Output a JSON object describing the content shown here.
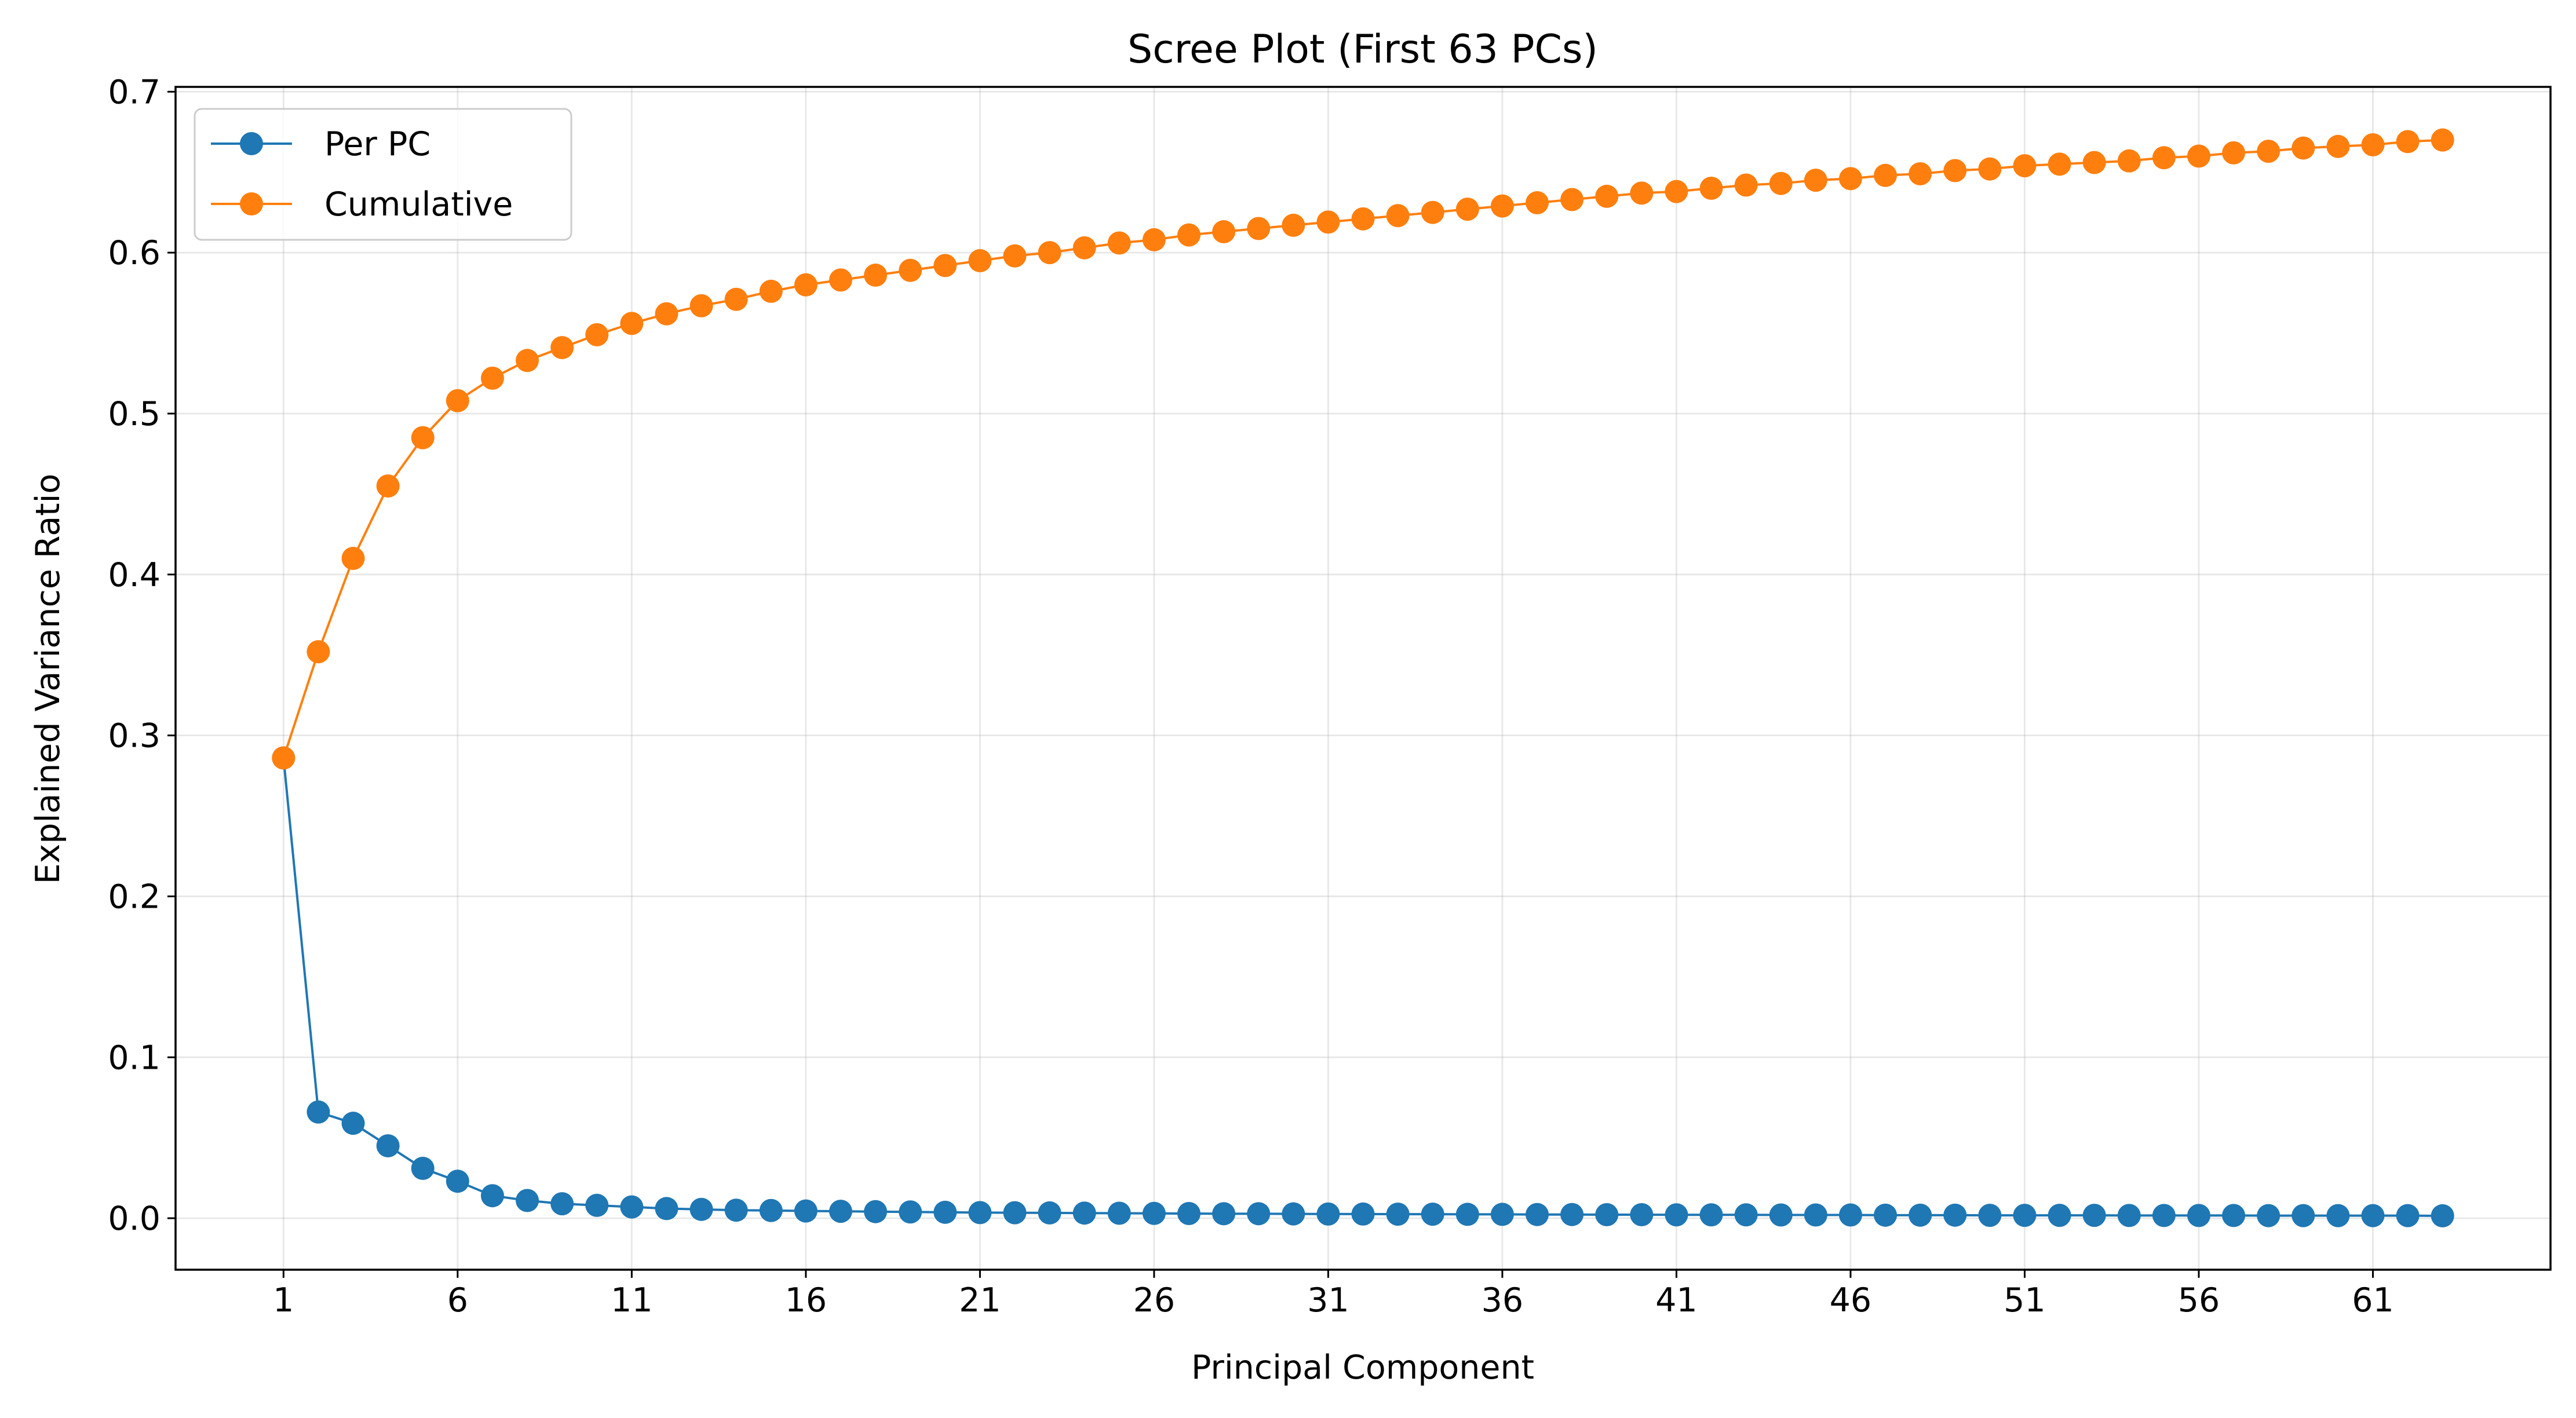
{
  "chart_data": {
    "type": "line",
    "title": "Scree Plot (First 63 PCs)",
    "xlabel": "Principal Component",
    "ylabel": "Explained Variance Ratio",
    "xlim": [
      -2.1,
      66.1
    ],
    "ylim": [
      -0.032,
      0.703
    ],
    "xticks": [
      1,
      6,
      11,
      16,
      21,
      26,
      31,
      36,
      41,
      46,
      51,
      56,
      61
    ],
    "yticks": [
      0.0,
      0.1,
      0.2,
      0.3,
      0.4,
      0.5,
      0.6,
      0.7
    ],
    "ytick_labels": [
      "0.0",
      "0.1",
      "0.2",
      "0.3",
      "0.4",
      "0.5",
      "0.6",
      "0.7"
    ],
    "grid": true,
    "legend_position": "upper-left",
    "x": [
      1,
      2,
      3,
      4,
      5,
      6,
      7,
      8,
      9,
      10,
      11,
      12,
      13,
      14,
      15,
      16,
      17,
      18,
      19,
      20,
      21,
      22,
      23,
      24,
      25,
      26,
      27,
      28,
      29,
      30,
      31,
      32,
      33,
      34,
      35,
      36,
      37,
      38,
      39,
      40,
      41,
      42,
      43,
      44,
      45,
      46,
      47,
      48,
      49,
      50,
      51,
      52,
      53,
      54,
      55,
      56,
      57,
      58,
      59,
      60,
      61,
      62,
      63
    ],
    "series": [
      {
        "name": "Per PC",
        "color": "#1f77b4",
        "values": [
          0.286,
          0.066,
          0.059,
          0.045,
          0.031,
          0.023,
          0.014,
          0.011,
          0.009,
          0.008,
          0.007,
          0.006,
          0.0055,
          0.005,
          0.0048,
          0.0045,
          0.0043,
          0.0041,
          0.0039,
          0.0037,
          0.0035,
          0.0034,
          0.0033,
          0.0032,
          0.0031,
          0.003,
          0.0029,
          0.0028,
          0.0028,
          0.0027,
          0.0026,
          0.0026,
          0.0025,
          0.0025,
          0.0024,
          0.0024,
          0.0023,
          0.0023,
          0.0022,
          0.0022,
          0.0021,
          0.0021,
          0.0021,
          0.002,
          0.002,
          0.002,
          0.0019,
          0.0019,
          0.0019,
          0.0018,
          0.0018,
          0.0018,
          0.0018,
          0.0017,
          0.0017,
          0.0017,
          0.0017,
          0.0016,
          0.0016,
          0.0016,
          0.0016,
          0.0016,
          0.0015
        ]
      },
      {
        "name": "Cumulative",
        "color": "#ff7f0e",
        "values": [
          0.286,
          0.352,
          0.41,
          0.455,
          0.485,
          0.508,
          0.522,
          0.533,
          0.541,
          0.549,
          0.556,
          0.562,
          0.567,
          0.571,
          0.576,
          0.58,
          0.583,
          0.586,
          0.589,
          0.592,
          0.595,
          0.598,
          0.6,
          0.603,
          0.606,
          0.608,
          0.611,
          0.613,
          0.615,
          0.617,
          0.619,
          0.621,
          0.623,
          0.625,
          0.627,
          0.629,
          0.631,
          0.633,
          0.635,
          0.637,
          0.638,
          0.64,
          0.642,
          0.643,
          0.645,
          0.646,
          0.648,
          0.649,
          0.651,
          0.652,
          0.654,
          0.655,
          0.656,
          0.657,
          0.659,
          0.66,
          0.662,
          0.663,
          0.665,
          0.666,
          0.667,
          0.669,
          0.67
        ]
      }
    ]
  }
}
